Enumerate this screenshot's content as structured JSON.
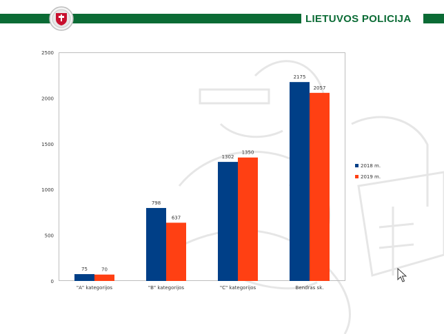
{
  "header": {
    "brand": "LIETUVOS POLICIJA",
    "logo_icon": "police-emblem-icon",
    "colors": {
      "green": "#0b6b35"
    }
  },
  "chart_data": {
    "type": "bar",
    "title": "",
    "xlabel": "",
    "ylabel": "",
    "categories": [
      "\"A\" kategorijos",
      "\"B\" kategorijos",
      "\"C\" kategorijos",
      "Bendras sk."
    ],
    "series": [
      {
        "name": "2018 m.",
        "color": "#003f87",
        "values": [
          75,
          798,
          1302,
          2175
        ]
      },
      {
        "name": "2019 m.",
        "color": "#ff4013",
        "values": [
          70,
          637,
          1350,
          2057
        ]
      }
    ],
    "ylim": [
      0,
      2500
    ],
    "yticks": [
      0,
      500,
      1000,
      1500,
      2000,
      2500
    ],
    "grid": false,
    "legend": "right"
  }
}
